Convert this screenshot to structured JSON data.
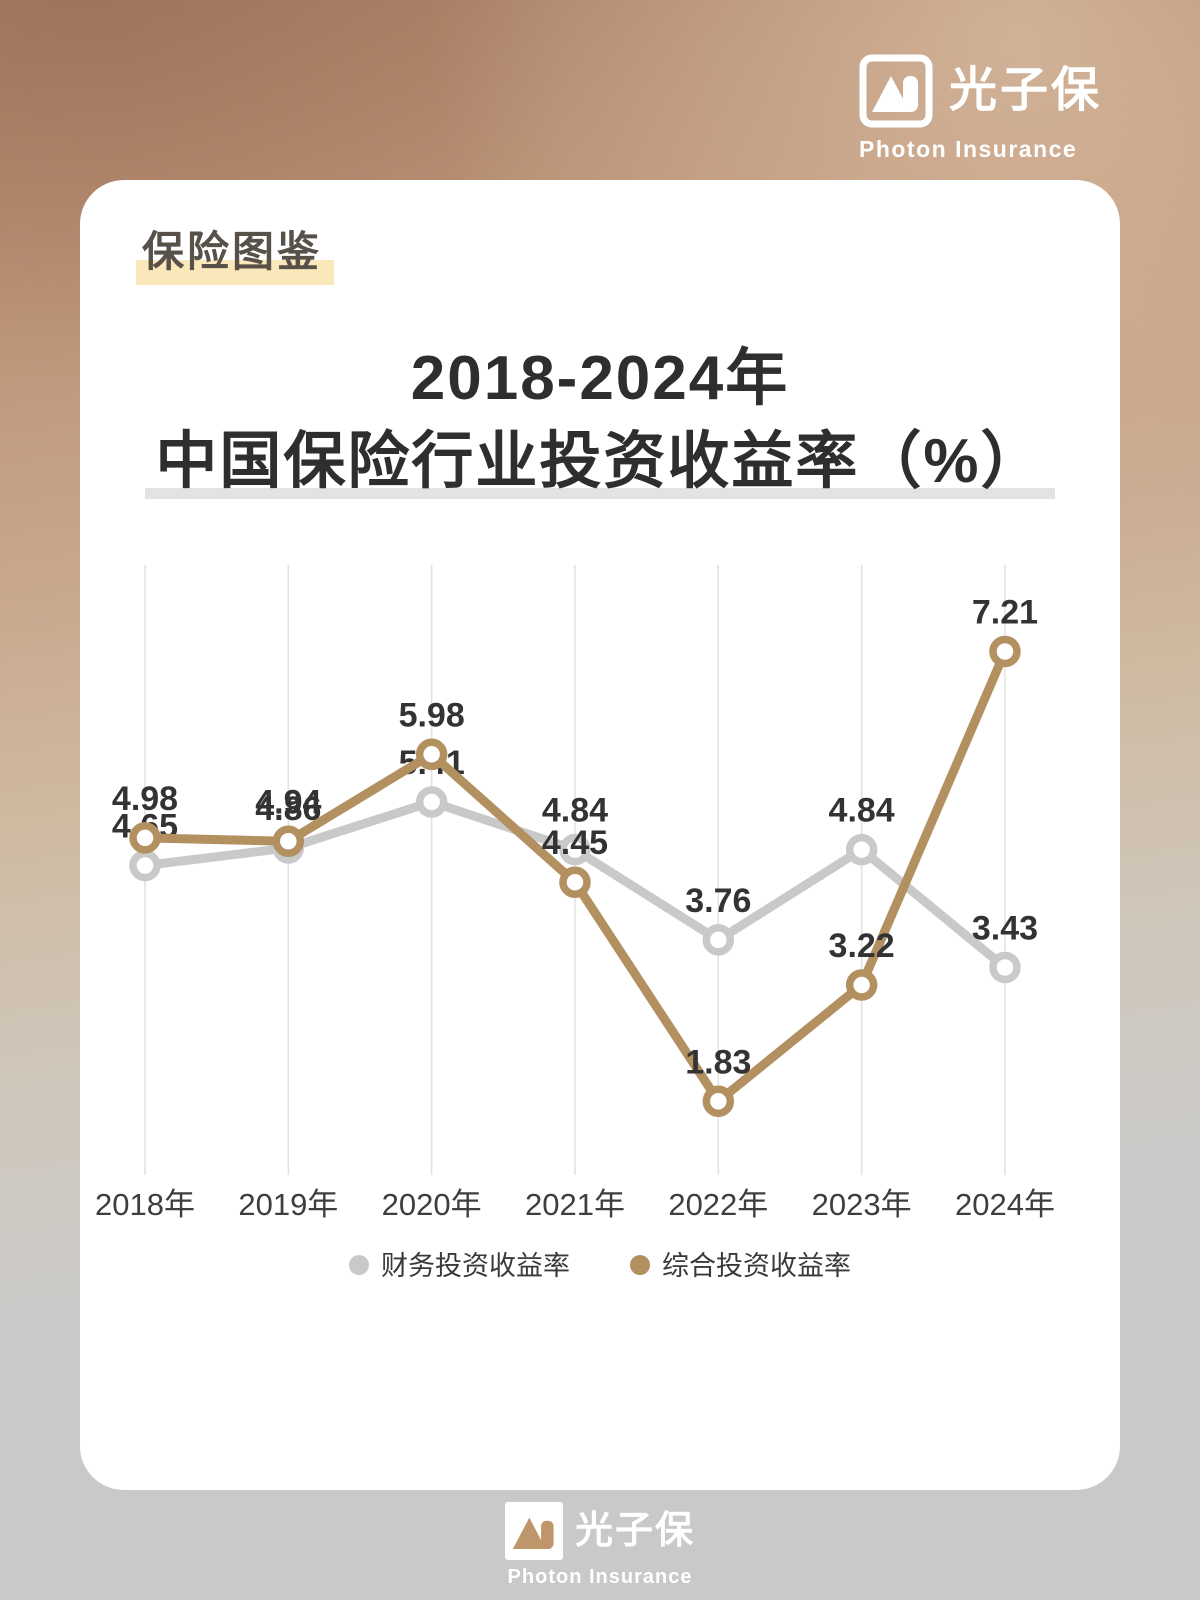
{
  "brand": {
    "name_zh": "光子保",
    "name_en": "Photon Insurance"
  },
  "card": {
    "badge": "保险图鉴",
    "title_line1": "2018-2024年",
    "title_line2": "中国保险行业投资收益率（%）"
  },
  "chart_data": {
    "type": "line",
    "title": "2018-2024年中国保险行业投资收益率（%）",
    "categories": [
      "2018年",
      "2019年",
      "2020年",
      "2021年",
      "2022年",
      "2023年",
      "2024年"
    ],
    "series": [
      {
        "name": "财务投资收益率",
        "color": "#c9c9c9",
        "values": [
          4.65,
          4.86,
          5.41,
          4.84,
          3.76,
          4.84,
          3.43
        ]
      },
      {
        "name": "综合投资收益率",
        "color": "#b39060",
        "values": [
          4.98,
          4.94,
          5.98,
          4.45,
          1.83,
          3.22,
          7.21
        ]
      }
    ],
    "ylim": [
      0.9,
      8.4
    ],
    "xlabel": "",
    "ylabel": "",
    "grid": "vertical-only",
    "gridline_color": "#e3e1df",
    "legend_position": "bottom",
    "point_style": "open-circle",
    "label_color": "#333333",
    "axis_label_color": "#3e3e3e",
    "legend_text_color": "#3a3a3a"
  },
  "colors": {
    "accent_gold": "#b39060",
    "accent_gray": "#c9c9c9",
    "badge_highlight": "#fae7ba",
    "title_color": "#2e2e2e",
    "card_bg": "#ffffff"
  }
}
